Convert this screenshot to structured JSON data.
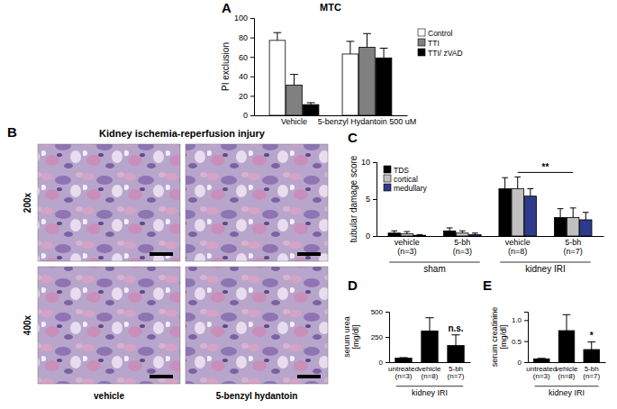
{
  "chart_data": [
    {
      "panel": "A",
      "type": "bar",
      "title": "MTC",
      "y_label": "PI exclusion",
      "categories": [
        "Vehicle",
        "5-benzyl Hydantoin 500 uM"
      ],
      "series": [
        {
          "name": "Control",
          "color": "#ffffff",
          "values": [
            77,
            63
          ],
          "errors": [
            8,
            13
          ]
        },
        {
          "name": "TTI",
          "color": "#808080",
          "values": [
            31,
            70
          ],
          "errors": [
            11,
            14
          ]
        },
        {
          "name": "TTI/ zVAD",
          "color": "#000000",
          "values": [
            11,
            59
          ],
          "errors": [
            2,
            10
          ]
        }
      ],
      "ylim": [
        0,
        100
      ],
      "yticks": [
        0,
        20,
        40,
        60,
        80,
        100
      ],
      "legend": "right"
    },
    {
      "panel": "C",
      "type": "bar",
      "y_label": "tubular damage score",
      "categories": [
        "vehicle\n(n=3)",
        "5-bh\n(n=3)",
        "vehicle\n(n=8)",
        "5-bh\n(n=7)"
      ],
      "groups": [
        {
          "label": "sham",
          "categories": [
            0,
            1
          ]
        },
        {
          "label": "kidney IRI",
          "categories": [
            2,
            3
          ]
        }
      ],
      "series": [
        {
          "name": "TDS",
          "color": "#000000",
          "values": [
            0.4,
            0.7,
            6.4,
            2.5
          ],
          "errors": [
            0.3,
            0.4,
            1.5,
            1.2
          ]
        },
        {
          "name": "cortical",
          "color": "#c0c0c0",
          "values": [
            0.3,
            0.4,
            6.4,
            2.5
          ],
          "errors": [
            0.3,
            0.3,
            1.6,
            1.3
          ]
        },
        {
          "name": "medullary",
          "color": "#2e3a8c",
          "values": [
            0.1,
            0.2,
            5.4,
            2.2
          ],
          "errors": [
            0.1,
            0.2,
            1.0,
            1.0
          ]
        }
      ],
      "ylim": [
        0,
        10
      ],
      "yticks": [
        0,
        5,
        10
      ],
      "legend": "top-left",
      "annotations": [
        {
          "text": "**",
          "categories": [
            2,
            3
          ]
        }
      ]
    },
    {
      "panel": "D",
      "type": "bar",
      "y_label": "serum urea\n[mg/dl]",
      "categories": [
        "untreated\n(n=3)",
        "vehicle\n(n=8)",
        "5-bh\n(n=7)"
      ],
      "groups": [
        {
          "label": "kidney IRI",
          "categories": [
            0,
            1,
            2
          ]
        }
      ],
      "values": [
        40,
        310,
        165
      ],
      "errors": [
        5,
        130,
        105
      ],
      "color": "#000000",
      "ylim": [
        0,
        500
      ],
      "yticks": [
        0,
        250,
        500
      ],
      "annotations": [
        {
          "text": "n.s.",
          "categories": [
            2
          ]
        }
      ]
    },
    {
      "panel": "E",
      "type": "bar",
      "y_label": "serum creatinine\n[mg/dl]",
      "categories": [
        "untreated\n(n=3)",
        "vehicle\n(n=8)",
        "5-bh\n(n=7)"
      ],
      "groups": [
        {
          "label": "kidney IRI",
          "categories": [
            0,
            1,
            2
          ]
        }
      ],
      "values": [
        0.08,
        0.75,
        0.3
      ],
      "errors": [
        0.01,
        0.38,
        0.18
      ],
      "color": "#000000",
      "ylim": [
        0,
        1.2
      ],
      "yticks": [
        0,
        0.5,
        {
          "value": 1,
          "label": "1.0"
        }
      ],
      "annotations": [
        {
          "text": "*",
          "categories": [
            2
          ]
        }
      ]
    }
  ],
  "figure_panel": {
    "panel": "B",
    "title": "Kidney ischemia-reperfusion injury",
    "row_labels": [
      "200x",
      "400x"
    ],
    "column_labels": [
      "vehicle",
      "5-benzyl hydantoin"
    ]
  }
}
